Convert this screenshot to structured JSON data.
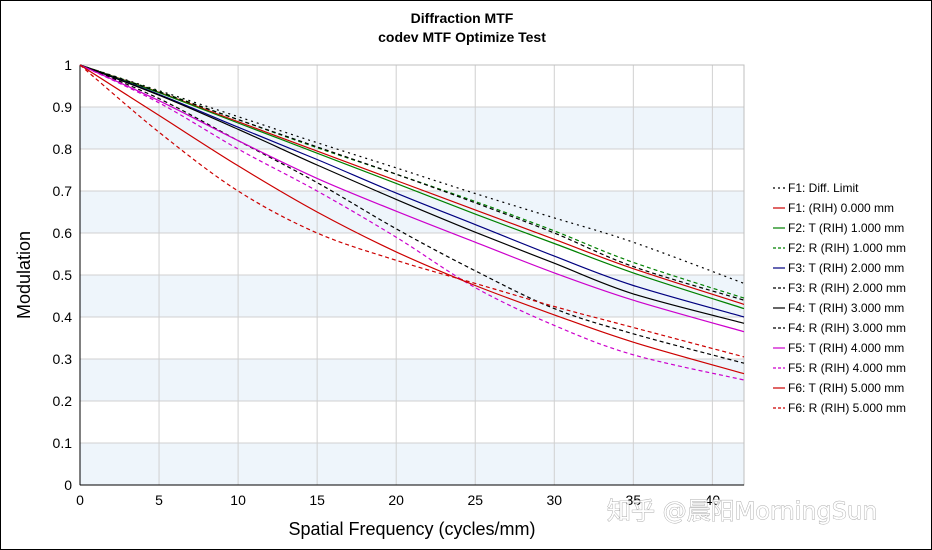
{
  "watermark": "知乎 @晨阳MorningSun",
  "chart_data": {
    "type": "line",
    "title": "Diffraction MTF",
    "subtitle": "codev MTF Optimize Test",
    "xlabel": "Spatial Frequency (cycles/mm)",
    "ylabel": "Modulation",
    "xlim": [
      0,
      42
    ],
    "ylim": [
      0,
      1
    ],
    "xticks": [
      0,
      5,
      10,
      15,
      20,
      25,
      30,
      35,
      40
    ],
    "yticks": [
      0,
      0.1,
      0.2,
      0.3,
      0.4,
      0.5,
      0.6,
      0.7,
      0.8,
      0.9,
      1
    ],
    "xticklabels": [
      "0",
      "5",
      "10",
      "15",
      "20",
      "25",
      "30",
      "35",
      "40"
    ],
    "yticklabels": [
      "0",
      "0.1",
      "0.2",
      "0.3",
      "0.4",
      "0.5",
      "0.6",
      "0.7",
      "0.8",
      "0.9",
      "1"
    ],
    "grid": true,
    "legend_position": "right",
    "series": [
      {
        "name": "F1: Diff. Limit",
        "color": "#000000",
        "style": "dotted",
        "x": [
          0,
          5,
          10,
          15,
          20,
          25,
          30,
          35,
          42
        ],
        "y": [
          1,
          0.939,
          0.877,
          0.815,
          0.755,
          0.694,
          0.636,
          0.578,
          0.48
        ]
      },
      {
        "name": "F1: (RIH) 0.000 mm",
        "color": "#cc0000",
        "style": "solid",
        "x": [
          0,
          5,
          10,
          15,
          20,
          25,
          30,
          35,
          42
        ],
        "y": [
          1,
          0.935,
          0.865,
          0.795,
          0.725,
          0.655,
          0.585,
          0.515,
          0.43
        ]
      },
      {
        "name": "F2: T (RIH) 1.000 mm",
        "color": "#008000",
        "style": "solid",
        "x": [
          0,
          5,
          10,
          15,
          20,
          25,
          30,
          35,
          42
        ],
        "y": [
          1,
          0.934,
          0.862,
          0.79,
          0.718,
          0.645,
          0.575,
          0.505,
          0.42
        ]
      },
      {
        "name": "F2: R (RIH) 1.000 mm",
        "color": "#008000",
        "style": "dashed",
        "x": [
          0,
          5,
          10,
          15,
          20,
          25,
          30,
          35,
          42
        ],
        "y": [
          1,
          0.937,
          0.87,
          0.803,
          0.74,
          0.675,
          0.605,
          0.53,
          0.445
        ]
      },
      {
        "name": "F3: T (RIH) 2.000 mm",
        "color": "#000080",
        "style": "solid",
        "x": [
          0,
          5,
          10,
          15,
          20,
          25,
          30,
          35,
          42
        ],
        "y": [
          1,
          0.93,
          0.852,
          0.775,
          0.695,
          0.62,
          0.545,
          0.475,
          0.4
        ]
      },
      {
        "name": "F3: R (RIH) 2.000 mm",
        "color": "#000000",
        "style": "dashed",
        "x": [
          0,
          5,
          10,
          15,
          20,
          25,
          30,
          35,
          42
        ],
        "y": [
          1,
          0.936,
          0.87,
          0.805,
          0.74,
          0.672,
          0.6,
          0.52,
          0.44
        ]
      },
      {
        "name": "F4: T (RIH) 3.000 mm",
        "color": "#000000",
        "style": "solid",
        "x": [
          0,
          5,
          10,
          15,
          20,
          25,
          30,
          35,
          42
        ],
        "y": [
          1,
          0.928,
          0.847,
          0.762,
          0.68,
          0.602,
          0.528,
          0.455,
          0.385
        ]
      },
      {
        "name": "F4: R (RIH) 3.000 mm",
        "color": "#000000",
        "style": "dashed",
        "x": [
          0,
          5,
          10,
          15,
          20,
          25,
          30,
          35,
          42
        ],
        "y": [
          1,
          0.92,
          0.82,
          0.72,
          0.61,
          0.51,
          0.42,
          0.36,
          0.29
        ]
      },
      {
        "name": "F5: T (RIH) 4.000 mm",
        "color": "#cc00cc",
        "style": "solid",
        "x": [
          0,
          5,
          10,
          15,
          20,
          25,
          30,
          35,
          42
        ],
        "y": [
          1,
          0.915,
          0.82,
          0.73,
          0.652,
          0.578,
          0.505,
          0.44,
          0.365
        ]
      },
      {
        "name": "F5: R (RIH) 4.000 mm",
        "color": "#cc00cc",
        "style": "dashed",
        "x": [
          0,
          5,
          10,
          15,
          20,
          25,
          30,
          35,
          42
        ],
        "y": [
          1,
          0.91,
          0.8,
          0.7,
          0.59,
          0.47,
          0.38,
          0.31,
          0.25
        ]
      },
      {
        "name": "F6: T (RIH) 5.000 mm",
        "color": "#cc0000",
        "style": "solid",
        "x": [
          0,
          5,
          10,
          15,
          20,
          25,
          30,
          35,
          42
        ],
        "y": [
          1,
          0.88,
          0.76,
          0.65,
          0.555,
          0.475,
          0.405,
          0.34,
          0.265
        ]
      },
      {
        "name": "F6: R (RIH) 5.000 mm",
        "color": "#cc0000",
        "style": "dashed",
        "x": [
          0,
          5,
          10,
          15,
          20,
          25,
          30,
          35,
          42
        ],
        "y": [
          1,
          0.84,
          0.7,
          0.6,
          0.535,
          0.48,
          0.425,
          0.375,
          0.305
        ]
      }
    ]
  }
}
